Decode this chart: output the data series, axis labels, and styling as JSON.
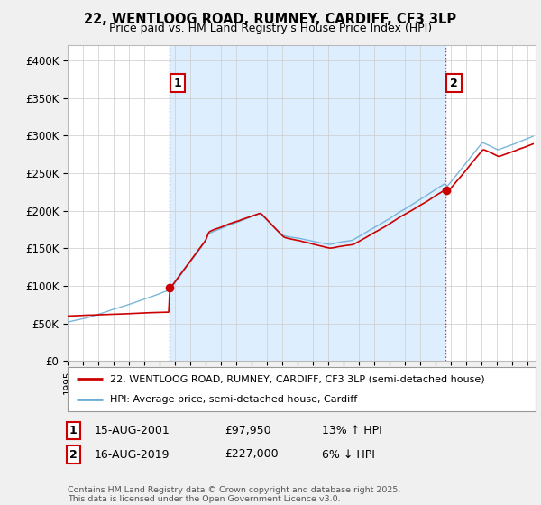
{
  "title": "22, WENTLOOG ROAD, RUMNEY, CARDIFF, CF3 3LP",
  "subtitle": "Price paid vs. HM Land Registry's House Price Index (HPI)",
  "ylabel_ticks": [
    "£0",
    "£50K",
    "£100K",
    "£150K",
    "£200K",
    "£250K",
    "£300K",
    "£350K",
    "£400K"
  ],
  "ytick_values": [
    0,
    50000,
    100000,
    150000,
    200000,
    250000,
    300000,
    350000,
    400000
  ],
  "ylim": [
    0,
    420000
  ],
  "xlim_start": 1995.0,
  "xlim_end": 2025.5,
  "sale1": {
    "date": "15-AUG-2001",
    "price": 97950,
    "label": "1",
    "year": 2001.625,
    "hpi_diff": "13% ↑ HPI"
  },
  "sale2": {
    "date": "16-AUG-2019",
    "price": 227000,
    "label": "2",
    "year": 2019.625,
    "hpi_diff": "6% ↓ HPI"
  },
  "legend_line1": "22, WENTLOOG ROAD, RUMNEY, CARDIFF, CF3 3LP (semi-detached house)",
  "legend_line2": "HPI: Average price, semi-detached house, Cardiff",
  "footer": "Contains HM Land Registry data © Crown copyright and database right 2025.\nThis data is licensed under the Open Government Licence v3.0.",
  "line_color_red": "#cc0000",
  "line_color_blue": "#6baed6",
  "shade_color": "#ddeeff",
  "vline1_color": "#888888",
  "vline2_color": "#cc0000",
  "annotation_box_color": "#cc0000",
  "bg_color": "#f0f0f0",
  "plot_bg_color": "#ffffff",
  "grid_color": "#cccccc"
}
